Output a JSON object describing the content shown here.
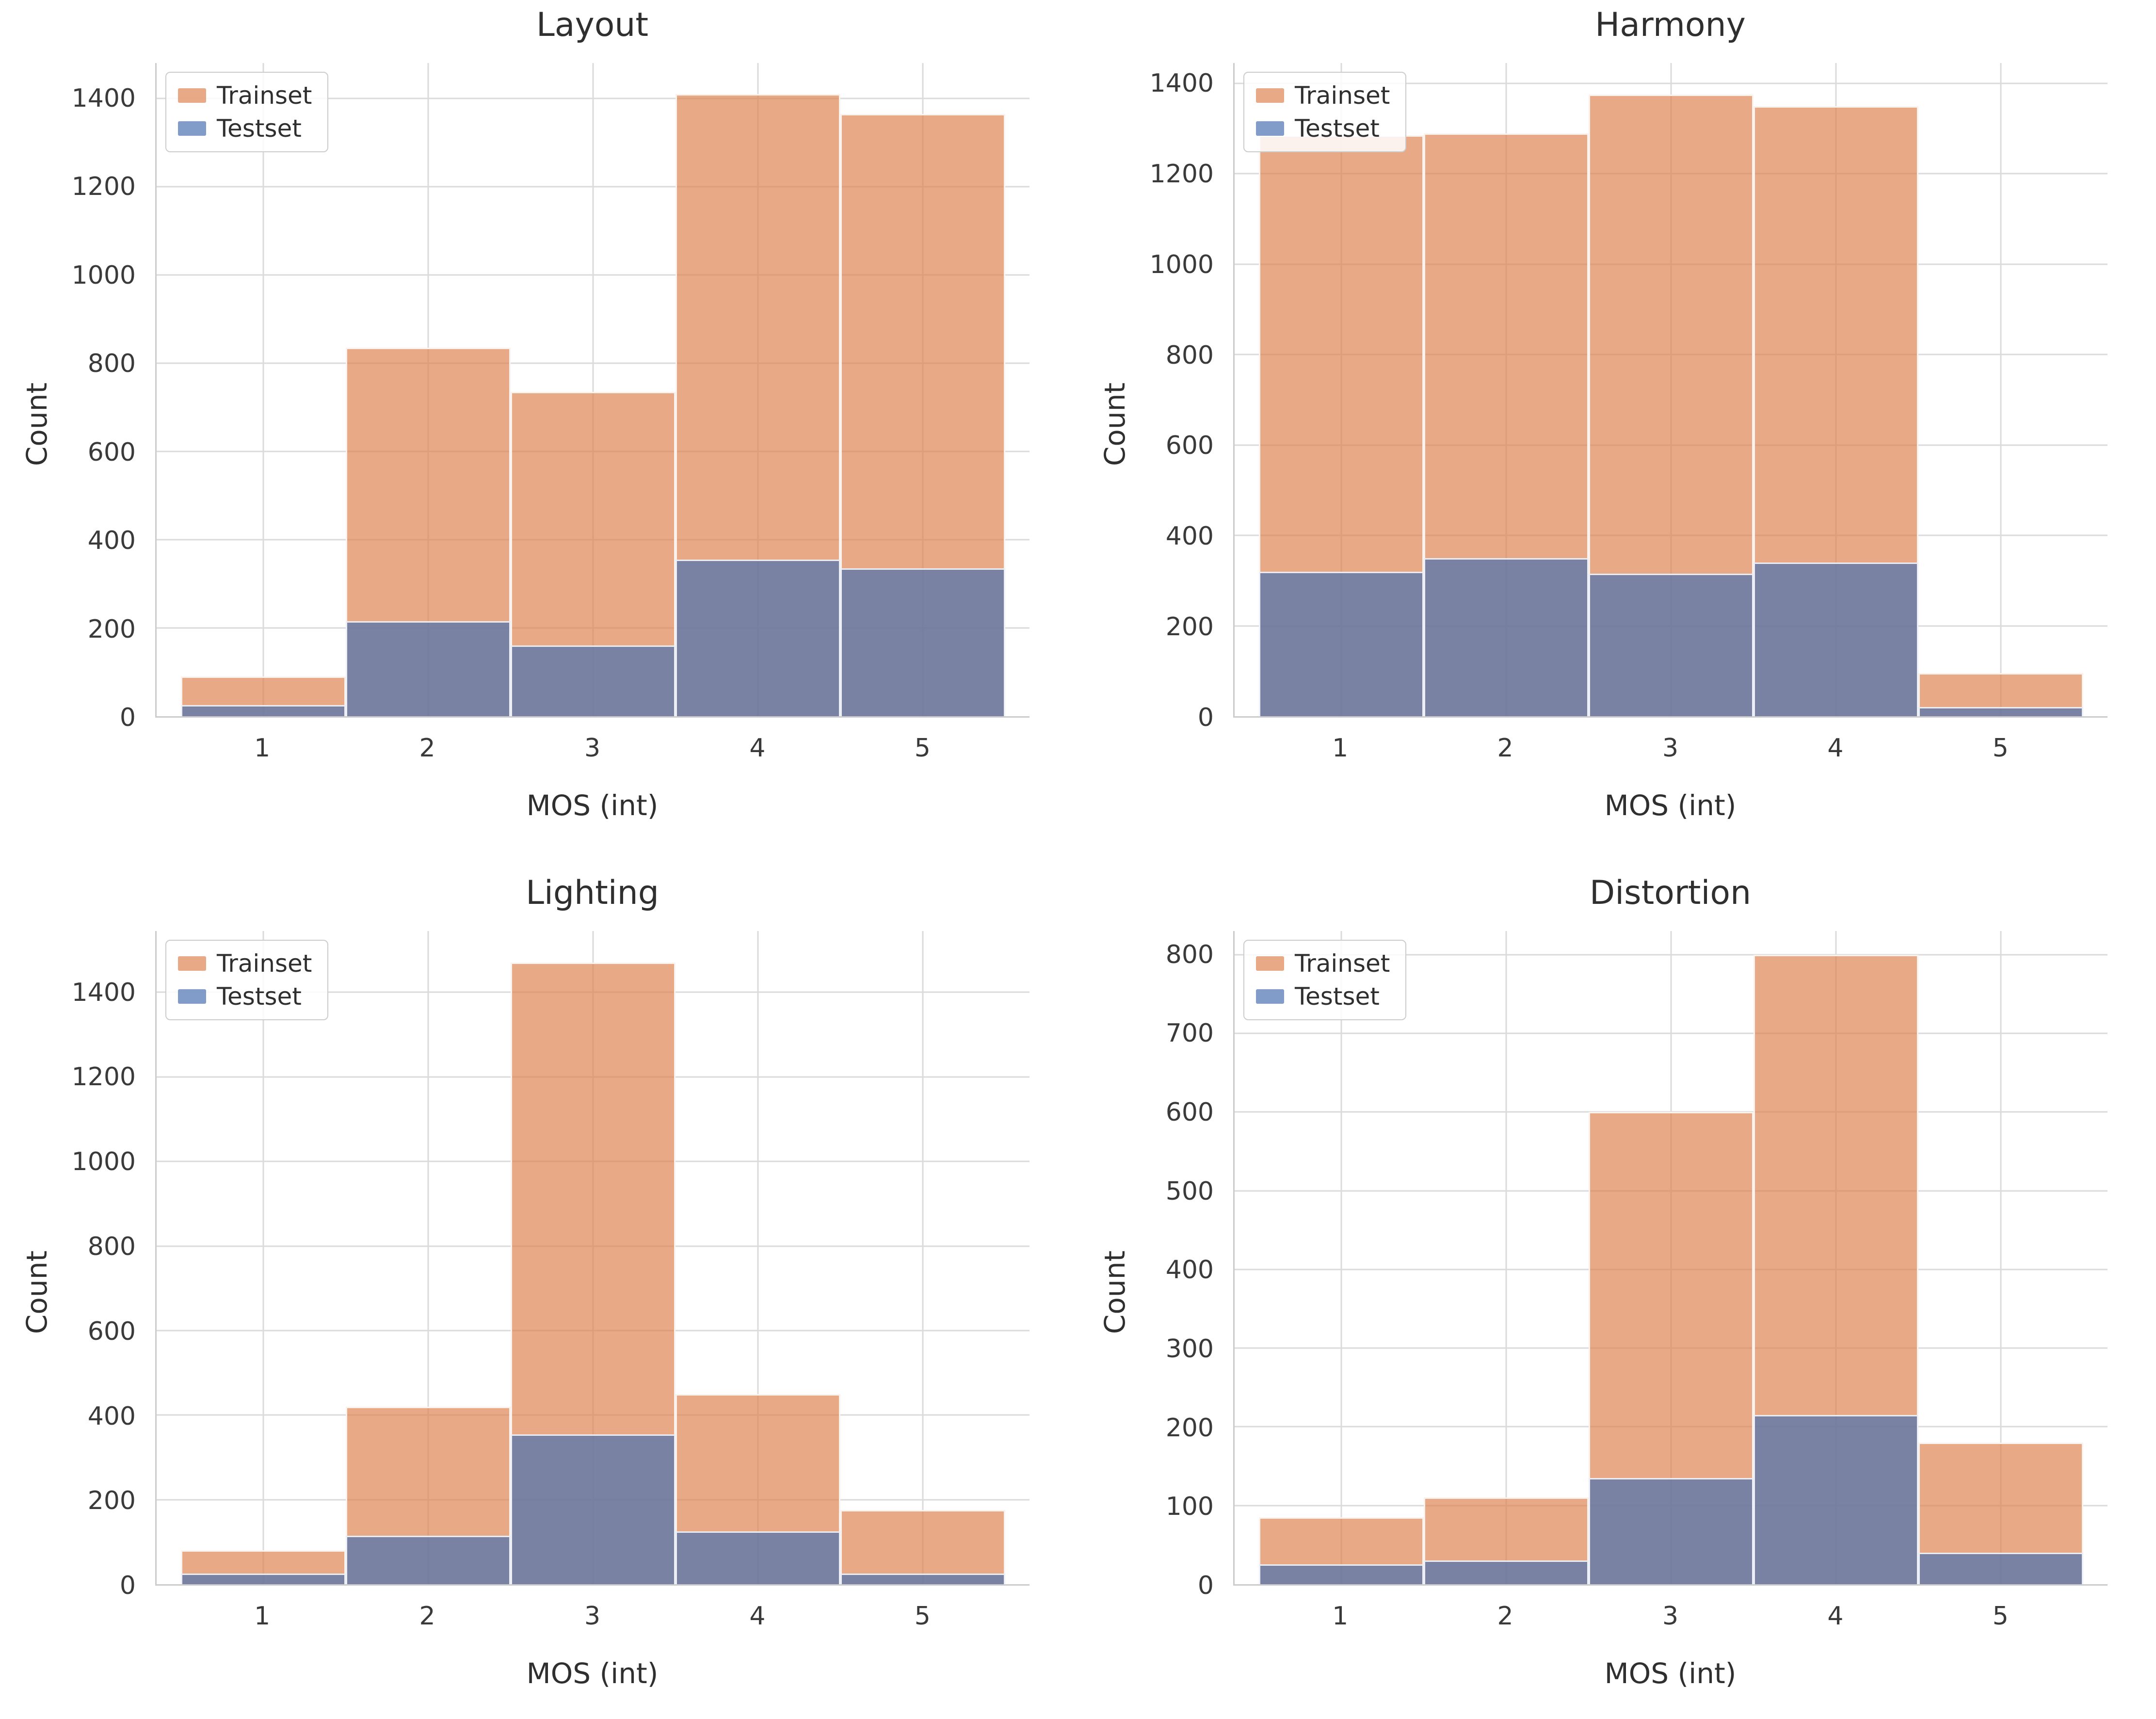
{
  "figure": {
    "legend": {
      "trainset_label": "Trainset",
      "testset_label": "Testset"
    },
    "colors": {
      "trainset": "#dd8452",
      "testset": "#4c72b0",
      "fill_alpha": 0.7,
      "grid": "#dbdbdb",
      "text": "#3a3a3a"
    }
  },
  "chart_data": [
    {
      "type": "bar",
      "title": "Layout",
      "xlabel": "MOS (int)",
      "ylabel": "Count",
      "categories": [
        "1",
        "2",
        "3",
        "4",
        "5"
      ],
      "series": [
        {
          "name": "Trainset",
          "values": [
            90,
            835,
            735,
            1410,
            1365
          ]
        },
        {
          "name": "Testset",
          "values": [
            25,
            215,
            160,
            355,
            335
          ]
        }
      ],
      "yticks": [
        0,
        200,
        400,
        600,
        800,
        1000,
        1200,
        1400
      ],
      "ylim": [
        0,
        1480
      ],
      "grid": true,
      "legend_position": "upper-left"
    },
    {
      "type": "bar",
      "title": "Harmony",
      "xlabel": "MOS (int)",
      "ylabel": "Count",
      "categories": [
        "1",
        "2",
        "3",
        "4",
        "5"
      ],
      "series": [
        {
          "name": "Trainset",
          "values": [
            1285,
            1290,
            1375,
            1350,
            95
          ]
        },
        {
          "name": "Testset",
          "values": [
            320,
            350,
            315,
            340,
            20
          ]
        }
      ],
      "yticks": [
        0,
        200,
        400,
        600,
        800,
        1000,
        1200,
        1400
      ],
      "ylim": [
        0,
        1445
      ],
      "grid": true,
      "legend_position": "upper-left"
    },
    {
      "type": "bar",
      "title": "Lighting",
      "xlabel": "MOS (int)",
      "ylabel": "Count",
      "categories": [
        "1",
        "2",
        "3",
        "4",
        "5"
      ],
      "series": [
        {
          "name": "Trainset",
          "values": [
            80,
            420,
            1470,
            450,
            175
          ]
        },
        {
          "name": "Testset",
          "values": [
            25,
            115,
            355,
            125,
            25
          ]
        }
      ],
      "yticks": [
        0,
        200,
        400,
        600,
        800,
        1000,
        1200,
        1400
      ],
      "ylim": [
        0,
        1545
      ],
      "grid": true,
      "legend_position": "upper-left"
    },
    {
      "type": "bar",
      "title": "Distortion",
      "xlabel": "MOS (int)",
      "ylabel": "Count",
      "categories": [
        "1",
        "2",
        "3",
        "4",
        "5"
      ],
      "series": [
        {
          "name": "Trainset",
          "values": [
            85,
            110,
            600,
            800,
            180
          ]
        },
        {
          "name": "Testset",
          "values": [
            25,
            30,
            135,
            215,
            40
          ]
        }
      ],
      "yticks": [
        0,
        100,
        200,
        300,
        400,
        500,
        600,
        700,
        800
      ],
      "ylim": [
        0,
        830
      ],
      "grid": true,
      "legend_position": "upper-left"
    }
  ]
}
